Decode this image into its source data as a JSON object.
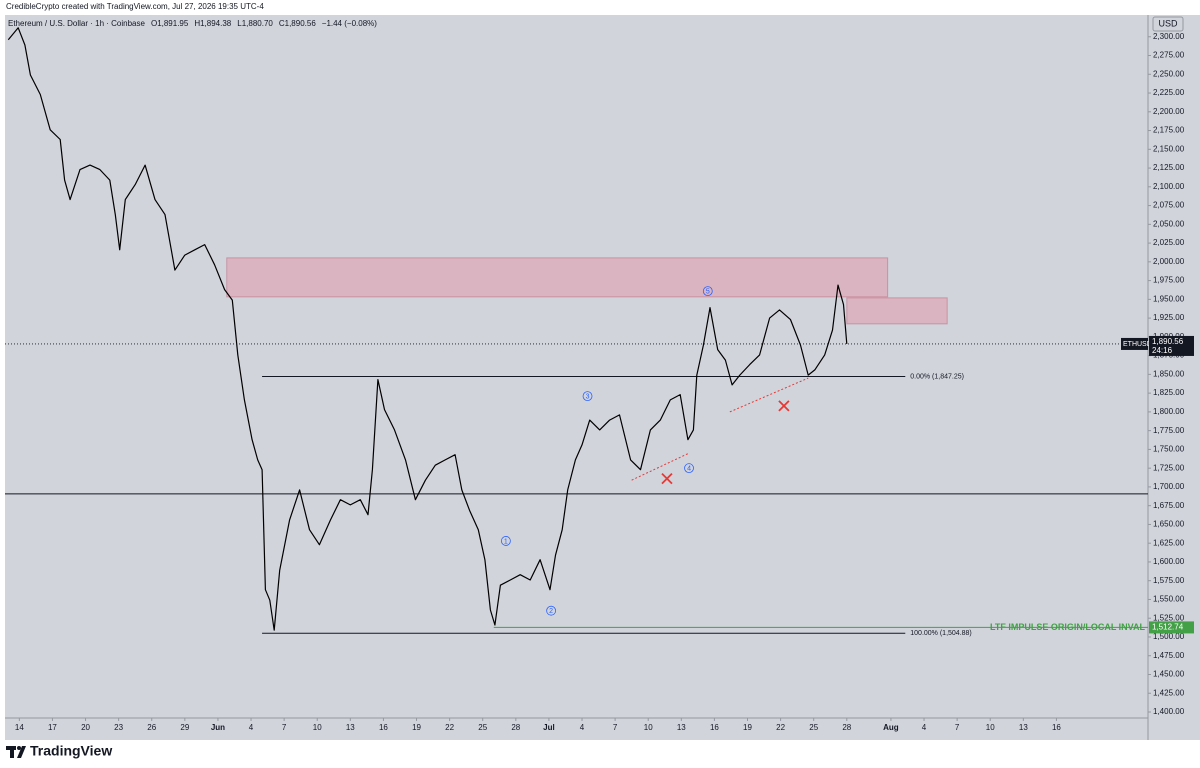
{
  "header": "CredibleCrypto created with TradingView.com, Jul 27, 2026 19:35 UTC-4",
  "footer": {
    "brand": "TradingView"
  },
  "chart_data": {
    "type": "line",
    "legend": {
      "symbol": "Ethereum / U.S. Dollar · 1h · Coinbase",
      "ohlc": [
        {
          "key": "O",
          "value": "1,891.95"
        },
        {
          "key": "H",
          "value": "1,894.38"
        },
        {
          "key": "L",
          "value": "1,880.70"
        },
        {
          "key": "C",
          "value": "1,890.56"
        }
      ],
      "change": "−1.44 (−0.08%)"
    },
    "currency": "USD",
    "x": [
      13.0,
      13.9,
      14.5,
      15.0,
      15.9,
      16.8,
      17.7,
      18.1,
      18.6,
      19.5,
      20.4,
      21.3,
      22.2,
      22.7,
      23.1,
      23.6,
      24.5,
      25.4,
      26.3,
      27.2,
      28.1,
      29.0,
      29.9,
      30.8,
      31.7,
      32.6,
      33.3,
      33.8,
      34.4,
      35.1,
      35.6,
      36.0,
      36.3,
      36.7,
      37.1,
      37.6,
      38.5,
      39.4,
      40.3,
      41.2,
      42.2,
      43.1,
      44.0,
      44.9,
      45.6,
      46.0,
      46.5,
      47.1,
      48.0,
      49.0,
      49.9,
      50.8,
      51.7,
      52.6,
      53.5,
      54.1,
      54.8,
      55.6,
      56.2,
      56.7,
      57.1,
      57.6,
      58.5,
      59.4,
      60.3,
      61.2,
      62.1,
      62.6,
      63.2,
      63.7,
      64.4,
      65.0,
      65.7,
      66.6,
      67.5,
      68.4,
      69.4,
      70.3,
      71.2,
      72.1,
      73.0,
      73.9,
      74.6,
      75.1,
      75.4,
      76.0,
      76.6,
      77.3,
      78.0,
      78.6,
      79.3,
      80.2,
      81.1,
      82.0,
      82.9,
      83.9,
      84.8,
      85.5,
      86.1,
      87.0,
      87.7,
      88.2,
      88.7,
      89.0
    ],
    "series": [
      {
        "name": "ETHUSD",
        "color": "#000000",
        "values": [
          2296,
          2312,
          2289,
          2249,
          2223,
          2176,
          2163,
          2109,
          2083,
          2123,
          2129,
          2123,
          2109,
          2063,
          2016,
          2083,
          2103,
          2129,
          2083,
          2063,
          1989,
          2009,
          2016,
          2023,
          1996,
          1963,
          1949,
          1876,
          1816,
          1763,
          1736,
          1723,
          1563,
          1549,
          1509,
          1589,
          1656,
          1696,
          1643,
          1623,
          1656,
          1683,
          1676,
          1683,
          1663,
          1723,
          1843,
          1803,
          1776,
          1736,
          1683,
          1709,
          1729,
          1736,
          1743,
          1696,
          1669,
          1643,
          1603,
          1536,
          1516,
          1569,
          1576,
          1583,
          1576,
          1603,
          1563,
          1609,
          1643,
          1696,
          1736,
          1756,
          1789,
          1776,
          1789,
          1796,
          1736,
          1723,
          1776,
          1789,
          1816,
          1823,
          1763,
          1776,
          1849,
          1889,
          1939,
          1883,
          1869,
          1836,
          1849,
          1863,
          1876,
          1925,
          1936,
          1923,
          1889,
          1849,
          1856,
          1876,
          1909,
          1969,
          1943,
          1890.56
        ]
      }
    ],
    "last_price": {
      "label": "1,890.56",
      "countdown": "24:16"
    },
    "xlim": [
      12.7,
      116.3
    ],
    "xticks": [
      14,
      17,
      20,
      23,
      26,
      29,
      {
        "value": 32,
        "label": "Jun"
      },
      {
        "value": 35,
        "label": "4"
      },
      {
        "value": 38,
        "label": "7"
      },
      {
        "value": 41,
        "label": "10"
      },
      {
        "value": 44,
        "label": "13"
      },
      {
        "value": 47,
        "label": "16"
      },
      {
        "value": 50,
        "label": "19"
      },
      {
        "value": 53,
        "label": "22"
      },
      {
        "value": 56,
        "label": "25"
      },
      {
        "value": 59,
        "label": "28"
      },
      {
        "value": 62,
        "label": "Jul"
      },
      {
        "value": 65,
        "label": "4"
      },
      {
        "value": 68,
        "label": "7"
      },
      {
        "value": 71,
        "label": "10"
      },
      {
        "value": 74,
        "label": "13"
      },
      {
        "value": 77,
        "label": "16"
      },
      {
        "value": 80,
        "label": "19"
      },
      {
        "value": 83,
        "label": "22"
      },
      {
        "value": 86,
        "label": "25"
      },
      {
        "value": 89,
        "label": "28"
      },
      {
        "value": 93,
        "label": "Aug"
      },
      {
        "value": 96,
        "label": "4"
      },
      {
        "value": 99,
        "label": "7"
      },
      {
        "value": 102,
        "label": "10"
      },
      {
        "value": 105,
        "label": "13"
      },
      {
        "value": 108,
        "label": "16"
      }
    ],
    "ylim": [
      1392,
      2329
    ],
    "yticks": [
      {
        "value": 1400,
        "label": "1,400.00"
      },
      {
        "value": 1425,
        "label": "1,425.00"
      },
      {
        "value": 1450,
        "label": "1,450.00"
      },
      {
        "value": 1475,
        "label": "1,475.00"
      },
      {
        "value": 1500,
        "label": "1,500.00"
      },
      {
        "value": 1525,
        "label": "1,525.00"
      },
      {
        "value": 1550,
        "label": "1,550.00"
      },
      {
        "value": 1575,
        "label": "1,575.00"
      },
      {
        "value": 1600,
        "label": "1,600.00"
      },
      {
        "value": 1625,
        "label": "1,625.00"
      },
      {
        "value": 1650,
        "label": "1,650.00"
      },
      {
        "value": 1675,
        "label": "1,675.00"
      },
      {
        "value": 1700,
        "label": "1,700.00"
      },
      {
        "value": 1725,
        "label": "1,725.00"
      },
      {
        "value": 1750,
        "label": "1,750.00"
      },
      {
        "value": 1775,
        "label": "1,775.00"
      },
      {
        "value": 1800,
        "label": "1,800.00"
      },
      {
        "value": 1825,
        "label": "1,825.00"
      },
      {
        "value": 1850,
        "label": "1,850.00"
      },
      {
        "value": 1875,
        "label": "1,875.00"
      },
      {
        "value": 1900,
        "label": "1,900.00"
      },
      {
        "value": 1925,
        "label": "1,925.00"
      },
      {
        "value": 1950,
        "label": "1,950.00"
      },
      {
        "value": 1975,
        "label": "1,975.00"
      },
      {
        "value": 2000,
        "label": "2,000.00"
      },
      {
        "value": 2025,
        "label": "2,025.00"
      },
      {
        "value": 2050,
        "label": "2,050.00"
      },
      {
        "value": 2075,
        "label": "2,075.00"
      },
      {
        "value": 2100,
        "label": "2,100.00"
      },
      {
        "value": 2125,
        "label": "2,125.00"
      },
      {
        "value": 2150,
        "label": "2,150.00"
      },
      {
        "value": 2175,
        "label": "2,175.00"
      },
      {
        "value": 2200,
        "label": "2,200.00"
      },
      {
        "value": 2225,
        "label": "2,225.00"
      },
      {
        "value": 2250,
        "label": "2,250.00"
      },
      {
        "value": 2275,
        "label": "2,275.00"
      },
      {
        "value": 2300,
        "label": "2,300.00"
      }
    ],
    "zones": [
      {
        "x": [
          32.8,
          92.7
        ],
        "y": [
          2005.3,
          1953.3
        ],
        "color": "rgba(236,120,140,0.35)"
      },
      {
        "x": [
          89.0,
          98.1
        ],
        "y": [
          1952.0,
          1917.3
        ],
        "color": "rgba(236,120,140,0.35)"
      }
    ],
    "levels": [
      {
        "value": 1847.25,
        "label": "0.00% (1,847.25)",
        "x": [
          36.0,
          94.3
        ]
      },
      {
        "value": 1504.88,
        "label": "100.00% (1,504.88)",
        "x": [
          36.0,
          94.3
        ]
      }
    ],
    "hline": 1690.7,
    "invalidation": {
      "value": 1512.74,
      "label": "1,512.74",
      "text": "LTF IMPULSE ORIGIN/LOCAL INVAL",
      "x": 57.0,
      "color": "#43a047"
    },
    "trendlines": [
      {
        "x": [
          69.5,
          74.7
        ],
        "y": [
          1709,
          1745
        ],
        "color": "#e53935"
      },
      {
        "x": [
          78.4,
          85.5
        ],
        "y": [
          1800,
          1845
        ],
        "color": "#e53935"
      }
    ],
    "crosses": [
      {
        "x": 72.7,
        "y": 1711
      },
      {
        "x": 83.3,
        "y": 1808
      }
    ],
    "waves": [
      {
        "label": "1",
        "x": 58.1,
        "y": 1628
      },
      {
        "label": "2",
        "x": 62.2,
        "y": 1535
      },
      {
        "label": "3",
        "x": 65.5,
        "y": 1821
      },
      {
        "label": "4",
        "x": 74.7,
        "y": 1725
      },
      {
        "label": "5",
        "x": 76.4,
        "y": 1961
      }
    ]
  }
}
